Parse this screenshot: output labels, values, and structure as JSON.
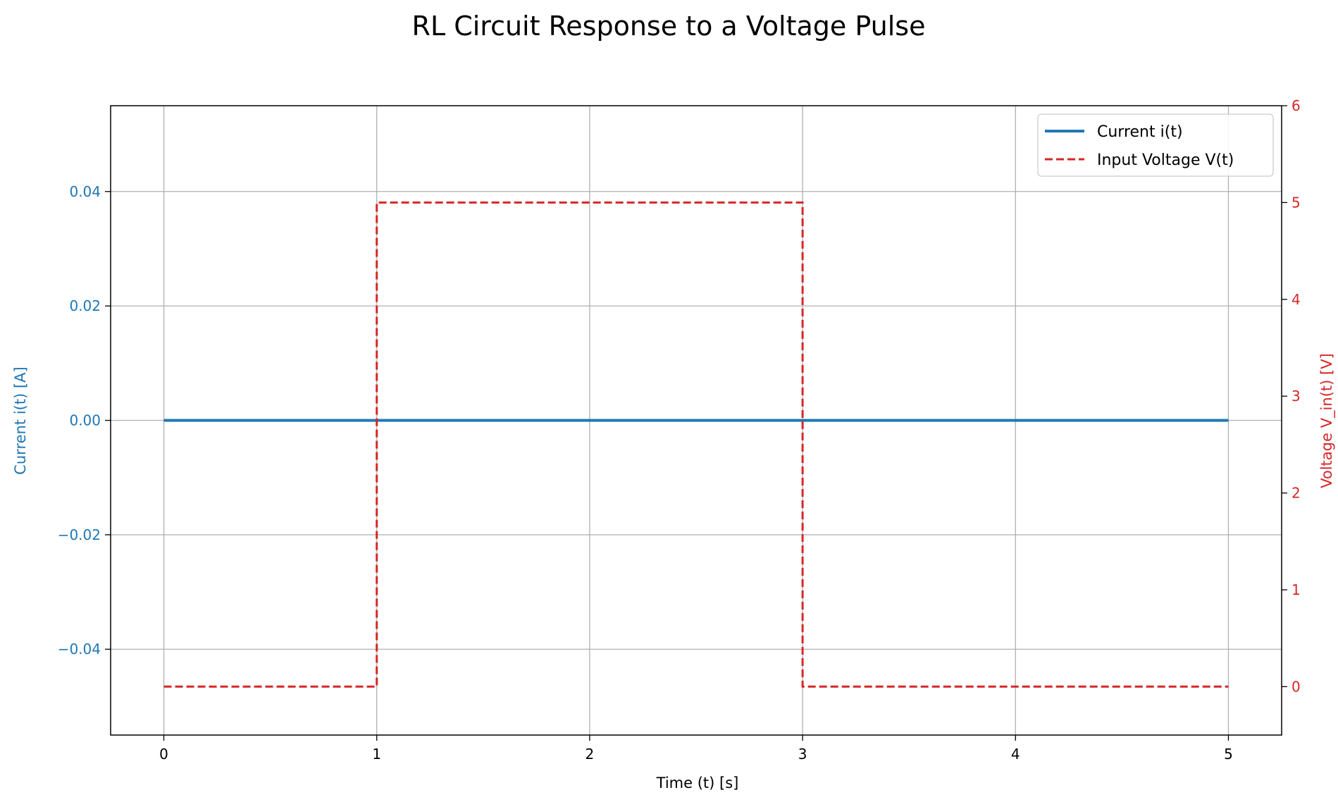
{
  "chart_data": {
    "type": "line",
    "title": "RL Circuit Response to a Voltage Pulse",
    "xlabel": "Time (t) [s]",
    "ylabel_left": "Current i(t) [A]",
    "ylabel_right": "Voltage V_in(t) [V]",
    "xlim": [
      -0.25,
      5.25
    ],
    "ylim_left": [
      -0.055,
      0.055
    ],
    "ylim_right": [
      -0.5,
      6
    ],
    "x_ticks": [
      0,
      1,
      2,
      3,
      4,
      5
    ],
    "x_tick_labels": [
      "0",
      "1",
      "2",
      "3",
      "4",
      "5"
    ],
    "y_left_ticks": [
      0.04,
      0.02,
      0.0,
      -0.02,
      -0.04
    ],
    "y_left_tick_labels": [
      "0.04",
      "0.02",
      "0.00",
      "−0.02",
      "−0.04"
    ],
    "y_right_ticks": [
      0,
      1,
      2,
      3,
      4,
      5,
      6
    ],
    "y_right_tick_labels": [
      "0",
      "1",
      "2",
      "3",
      "4",
      "5",
      "6"
    ],
    "grid": true,
    "legend_position": "top-right",
    "colors": {
      "current": "#1f77b4",
      "voltage": "#d62728",
      "grid": "#b0b0b0",
      "axis": "#000000"
    },
    "series": [
      {
        "name": "Current i(t)",
        "axis": "left",
        "style": "solid",
        "x": [
          0,
          5
        ],
        "y": [
          0,
          0
        ]
      },
      {
        "name": "Input Voltage V(t)",
        "axis": "right",
        "style": "dashed",
        "x": [
          0,
          1,
          1,
          3,
          3,
          5
        ],
        "y": [
          0,
          0,
          5,
          5,
          0,
          0
        ]
      }
    ]
  }
}
